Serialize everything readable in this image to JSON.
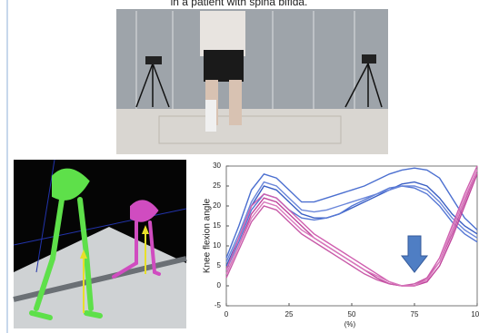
{
  "caption": "in a patient with spina bifida.",
  "chart_data": {
    "type": "line",
    "y_label": "Knee flexion angle",
    "x_label": "(%)",
    "x": [
      0,
      5,
      10,
      15,
      20,
      25,
      30,
      35,
      40,
      45,
      50,
      55,
      60,
      65,
      70,
      75,
      80,
      85,
      90,
      95,
      100
    ],
    "series": [
      {
        "color": "#3a5fc4",
        "values": [
          5,
          12,
          20,
          25,
          24,
          21,
          18,
          17,
          17,
          18,
          19.5,
          21,
          22.5,
          24,
          25.5,
          26,
          25,
          22,
          18,
          15,
          13
        ]
      },
      {
        "color": "#4b6fd0",
        "values": [
          7,
          15,
          24,
          28,
          27,
          24,
          21,
          21,
          22,
          23,
          24,
          25,
          26.5,
          28,
          29,
          29.5,
          29,
          27,
          22,
          17,
          14
        ]
      },
      {
        "color": "#5577d4",
        "values": [
          4,
          11,
          19,
          23,
          22,
          19,
          17,
          16.5,
          17,
          18,
          20,
          21.5,
          23,
          24.5,
          25,
          24.5,
          23,
          20,
          16,
          13,
          11
        ]
      },
      {
        "color": "#6a86da",
        "values": [
          6,
          13,
          21,
          26,
          25,
          22,
          19,
          18.5,
          19,
          20,
          21,
          22,
          23,
          24,
          25,
          25,
          24,
          21,
          17,
          14,
          12
        ]
      },
      {
        "color": "#c0449c",
        "values": [
          3,
          10,
          18,
          22,
          21,
          18,
          15,
          12,
          10,
          8,
          6,
          4,
          2,
          0.5,
          0,
          0,
          1,
          5,
          12,
          20,
          28
        ]
      },
      {
        "color": "#d060b0",
        "values": [
          4,
          12,
          20,
          23,
          22,
          19,
          16,
          13,
          11,
          9,
          7,
          5,
          3,
          1,
          0,
          0,
          2,
          7,
          15,
          23,
          30
        ]
      },
      {
        "color": "#c85aa8",
        "values": [
          2,
          9,
          16,
          20,
          19,
          16,
          13,
          11,
          9,
          7,
          5,
          3,
          1.5,
          0.5,
          0,
          0.5,
          2,
          6,
          13,
          21,
          29
        ]
      },
      {
        "color": "#d878bc",
        "values": [
          3,
          10,
          17,
          21,
          20,
          17,
          14,
          12,
          10,
          8,
          6,
          4,
          2.5,
          1,
          0,
          0,
          1.5,
          6,
          14,
          22,
          29
        ]
      }
    ],
    "xlim": [
      0,
      100
    ],
    "xticks": [
      0,
      25,
      50,
      75,
      100
    ],
    "ylim": [
      -5,
      30
    ],
    "yticks": [
      -5,
      0,
      5,
      10,
      15,
      20,
      25,
      30
    ]
  }
}
